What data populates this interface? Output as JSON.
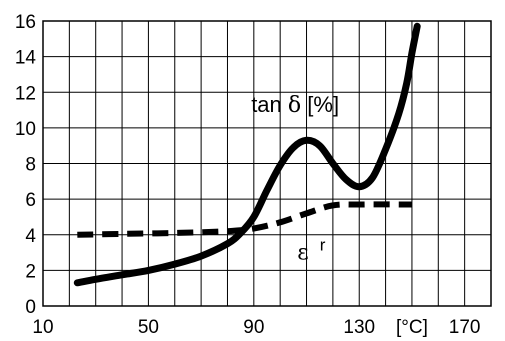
{
  "chart_data": {
    "type": "line",
    "title": "",
    "xlabel": "",
    "ylabel": "",
    "xlim": [
      10,
      180
    ],
    "ylim": [
      0,
      16
    ],
    "x_ticks": [
      10,
      50,
      90,
      130,
      170
    ],
    "x_unit_label": "[°C]",
    "y_ticks": [
      0,
      2,
      4,
      6,
      8,
      10,
      12,
      14,
      16
    ],
    "grid": true,
    "series": [
      {
        "name": "tan δ [%]",
        "name_parts": {
          "main": "tan ",
          "symbol": "δ",
          "suffix": " [%]"
        },
        "style": "solid",
        "points": [
          [
            23,
            1.3
          ],
          [
            30,
            1.5
          ],
          [
            40,
            1.75
          ],
          [
            50,
            2.0
          ],
          [
            60,
            2.35
          ],
          [
            70,
            2.8
          ],
          [
            80,
            3.5
          ],
          [
            85,
            4.1
          ],
          [
            90,
            5.0
          ],
          [
            95,
            6.5
          ],
          [
            100,
            7.9
          ],
          [
            105,
            8.9
          ],
          [
            110,
            9.3
          ],
          [
            115,
            9.0
          ],
          [
            120,
            8.0
          ],
          [
            125,
            7.1
          ],
          [
            130,
            6.7
          ],
          [
            135,
            7.2
          ],
          [
            140,
            8.8
          ],
          [
            145,
            10.8
          ],
          [
            148,
            12.5
          ],
          [
            150,
            14.2
          ],
          [
            152,
            15.7
          ]
        ]
      },
      {
        "name": "εr",
        "name_parts": {
          "main": "ε",
          "sup": "r"
        },
        "style": "dashed",
        "points": [
          [
            23,
            4.0
          ],
          [
            40,
            4.05
          ],
          [
            60,
            4.1
          ],
          [
            80,
            4.2
          ],
          [
            90,
            4.35
          ],
          [
            100,
            4.7
          ],
          [
            110,
            5.2
          ],
          [
            120,
            5.65
          ],
          [
            130,
            5.7
          ],
          [
            150,
            5.7
          ]
        ]
      }
    ]
  }
}
